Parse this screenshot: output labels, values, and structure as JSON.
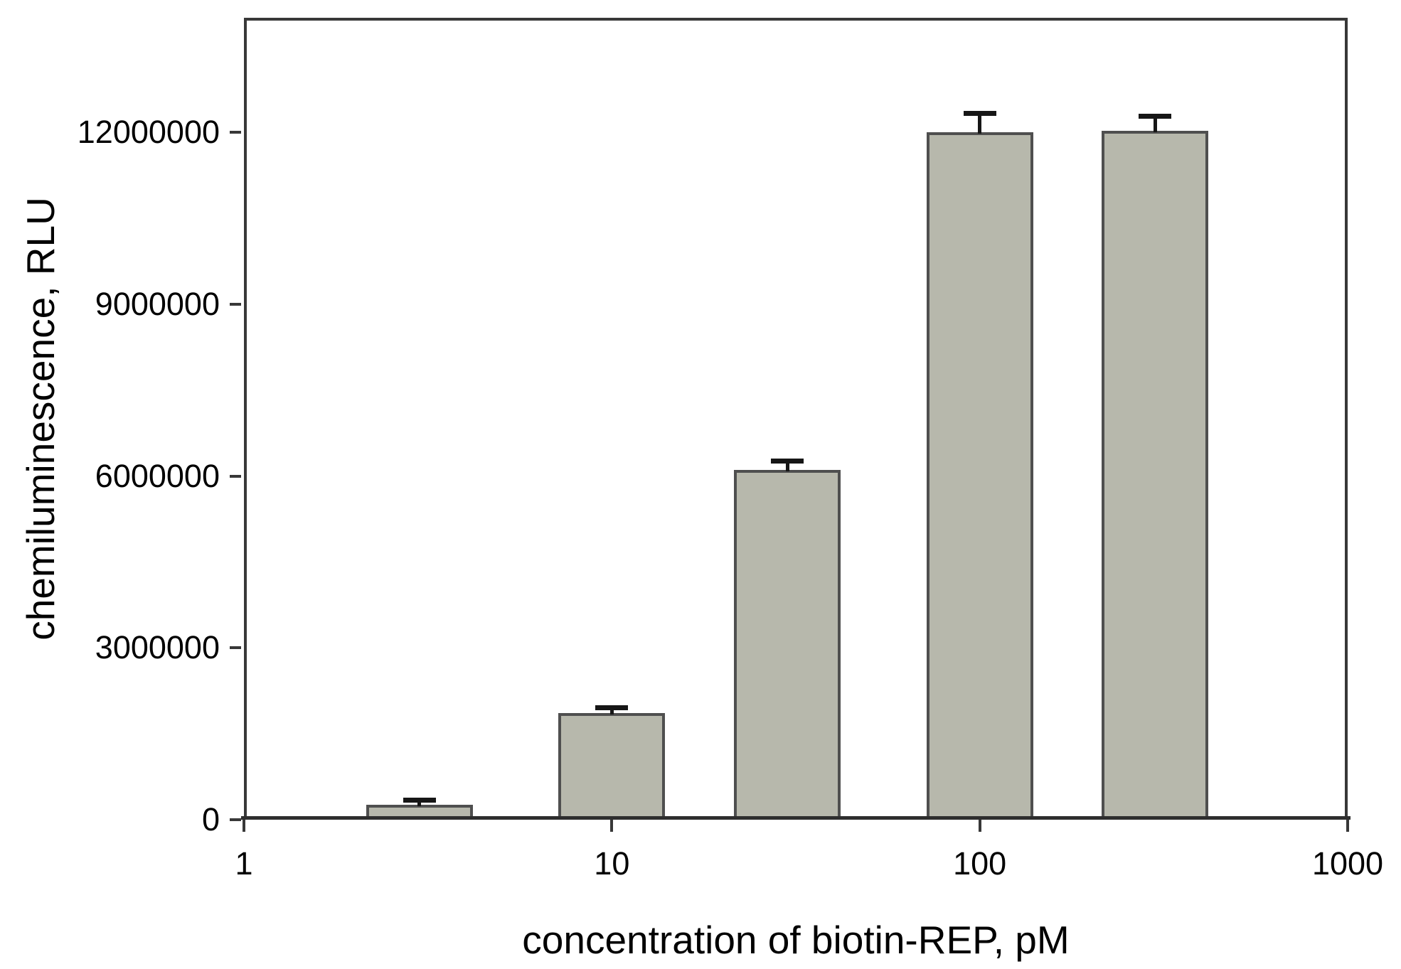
{
  "figure": {
    "background_color": "#ffffff",
    "text_color": "#000000"
  },
  "chart_data": {
    "type": "bar",
    "title": "",
    "xlabel": "concentration of biotin-REP, pM",
    "ylabel": "chemiluminescence, RLU",
    "x_scale": "log10",
    "xlim": [
      1,
      1000
    ],
    "ylim": [
      0,
      14000000
    ],
    "grid": false,
    "legend": null,
    "x_ticks": [
      1,
      10,
      100,
      1000
    ],
    "x_tick_labels": [
      "1",
      "10",
      "100",
      "1000"
    ],
    "y_ticks": [
      0,
      3000000,
      6000000,
      9000000,
      12000000
    ],
    "y_tick_labels": [
      "0",
      "3000000",
      "6000000",
      "9000000",
      "12000000"
    ],
    "categories": [
      3,
      10,
      30,
      100,
      300
    ],
    "values": [
      260000,
      1860000,
      6110000,
      12000000,
      12030000
    ],
    "errors": [
      70000,
      90000,
      150000,
      330000,
      250000
    ],
    "colors": {
      "bar_fill": "#b7b8ac",
      "bar_border": "#4f4f4f",
      "error_bar": "#161616",
      "axis": "#383838"
    }
  }
}
